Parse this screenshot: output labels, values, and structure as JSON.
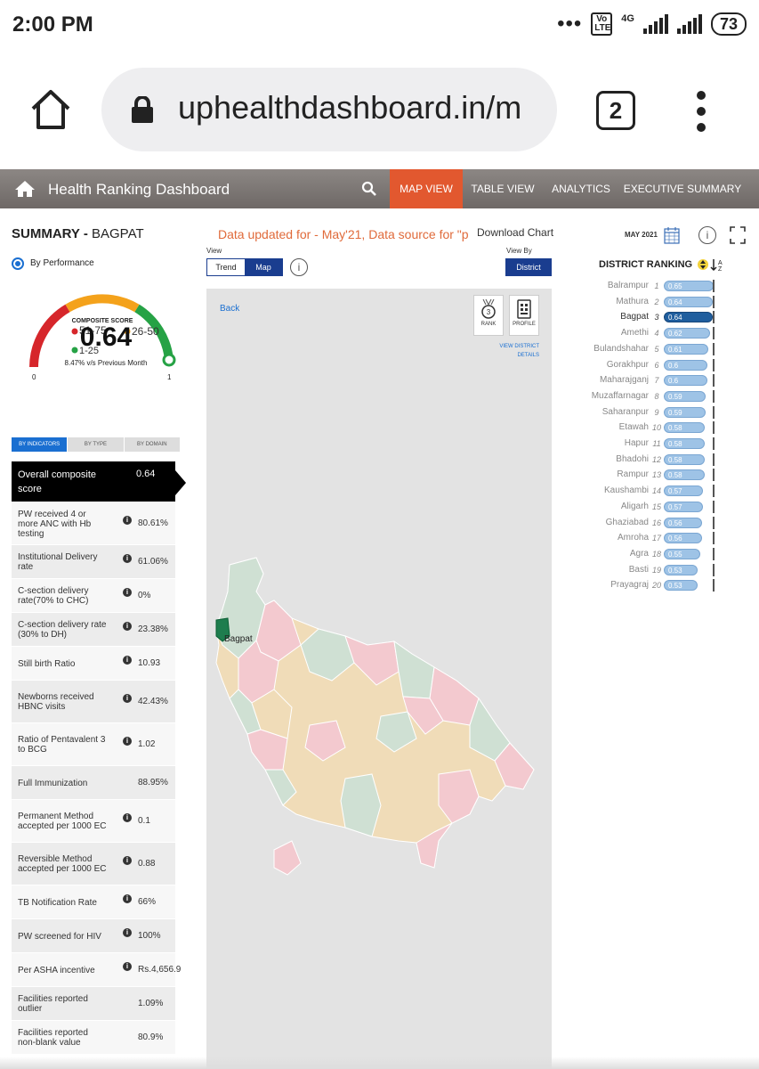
{
  "status_bar": {
    "time": "2:00 PM",
    "volte": "Vo LTE",
    "network": "4G",
    "battery": "73"
  },
  "browser": {
    "url": "uphealthdashboard.in/m",
    "tab_count": "2"
  },
  "nav": {
    "title": "Health Ranking Dashboard",
    "tabs": [
      {
        "label": "MAP VIEW",
        "active": true
      },
      {
        "label": "TABLE VIEW",
        "active": false
      },
      {
        "label": "ANALYTICS",
        "active": false
      },
      {
        "label": "EXECUTIVE SUMMARY",
        "active": false
      }
    ]
  },
  "summary": {
    "title_prefix": "SUMMARY - ",
    "district": "BAGPAT",
    "mode": "By Performance",
    "gauge": {
      "label": "COMPOSITE SCORE",
      "score": "0.64",
      "comparison": "8.47% v/s Previous Month",
      "legend": [
        "51-75",
        "26-50",
        "1-25"
      ],
      "min": "0",
      "max": "1",
      "value_fraction": 0.64,
      "colors": {
        "low": "#d6262b",
        "mid": "#f4a21b",
        "high": "#26a245"
      }
    },
    "tabs": [
      "BY INDICATORS",
      "BY TYPE",
      "BY DOMAIN"
    ],
    "indicators": [
      {
        "label": "Overall composite score",
        "value": "0.64",
        "info": false
      },
      {
        "label": "PW received 4 or more ANC with Hb testing",
        "value": "80.61%",
        "info": true
      },
      {
        "label": "Institutional Delivery rate",
        "value": "61.06%",
        "info": true
      },
      {
        "label": "C-section delivery rate(70% to CHC)",
        "value": "0%",
        "info": true
      },
      {
        "label": "C-section delivery rate (30% to DH)",
        "value": "23.38%",
        "info": true
      },
      {
        "label": "Still birth Ratio",
        "value": "10.93",
        "info": true
      },
      {
        "label": "Newborns received HBNC visits",
        "value": "42.43%",
        "info": true
      },
      {
        "label": "Ratio of Pentavalent 3 to BCG",
        "value": "1.02",
        "info": true
      },
      {
        "label": "Full Immunization",
        "value": "88.95%",
        "info": false
      },
      {
        "label": "Permanent Method accepted per 1000 EC",
        "value": "0.1",
        "info": true
      },
      {
        "label": "Reversible Method accepted per 1000 EC",
        "value": "0.88",
        "info": true
      },
      {
        "label": "TB Notification Rate",
        "value": "66%",
        "info": true
      },
      {
        "label": "PW screened for HIV",
        "value": "100%",
        "info": true
      },
      {
        "label": "Per ASHA incentive",
        "value": "Rs.4,656.9",
        "info": true
      },
      {
        "label": "Facilities reported outlier",
        "value": "1.09%",
        "info": false
      },
      {
        "label": "Facilities reported non-blank value",
        "value": "80.9%",
        "info": false
      }
    ]
  },
  "center": {
    "updated_text": "Data updated for - May'21, Data source for \"p",
    "download": "Download Chart",
    "view_label": "View",
    "view_by_label": "View By",
    "toggle": [
      "Trend",
      "Map"
    ],
    "district_btn": "District",
    "back": "Back",
    "rank_icon_label": "RANK",
    "rank_icon_num": "3",
    "profile_icon_label": "PROFILE",
    "view_district": "VIEW DISTRICT DETAILS",
    "map_label": "Bagpat"
  },
  "ranking": {
    "month": "MAY 2021",
    "title": "DISTRICT RANKING",
    "selected": "Bagpat",
    "rows": [
      {
        "name": "Balrampur",
        "rank": "1",
        "value": "0.65",
        "score": 0.65
      },
      {
        "name": "Mathura",
        "rank": "2",
        "value": "0.64",
        "score": 0.64
      },
      {
        "name": "Bagpat",
        "rank": "3",
        "value": "0.64",
        "score": 0.64
      },
      {
        "name": "Amethi",
        "rank": "4",
        "value": "0.62",
        "score": 0.62
      },
      {
        "name": "Bulandshahar",
        "rank": "5",
        "value": "0.61",
        "score": 0.61
      },
      {
        "name": "Gorakhpur",
        "rank": "6",
        "value": "0.6",
        "score": 0.6
      },
      {
        "name": "Maharajganj",
        "rank": "7",
        "value": "0.6",
        "score": 0.6
      },
      {
        "name": "Muzaffarnagar",
        "rank": "8",
        "value": "0.59",
        "score": 0.59
      },
      {
        "name": "Saharanpur",
        "rank": "9",
        "value": "0.59",
        "score": 0.59
      },
      {
        "name": "Etawah",
        "rank": "10",
        "value": "0.58",
        "score": 0.58
      },
      {
        "name": "Hapur",
        "rank": "11",
        "value": "0.58",
        "score": 0.58
      },
      {
        "name": "Bhadohi",
        "rank": "12",
        "value": "0.58",
        "score": 0.58
      },
      {
        "name": "Rampur",
        "rank": "13",
        "value": "0.58",
        "score": 0.58
      },
      {
        "name": "Kaushambi",
        "rank": "14",
        "value": "0.57",
        "score": 0.57
      },
      {
        "name": "Aligarh",
        "rank": "15",
        "value": "0.57",
        "score": 0.57
      },
      {
        "name": "Ghaziabad",
        "rank": "16",
        "value": "0.56",
        "score": 0.56
      },
      {
        "name": "Amroha",
        "rank": "17",
        "value": "0.56",
        "score": 0.56
      },
      {
        "name": "Agra",
        "rank": "18",
        "value": "0.55",
        "score": 0.55
      },
      {
        "name": "Basti",
        "rank": "19",
        "value": "0.53",
        "score": 0.53
      },
      {
        "name": "Prayagraj",
        "rank": "20",
        "value": "0.53",
        "score": 0.53
      }
    ]
  },
  "icons": {
    "home": "home-icon",
    "lock": "lock-icon",
    "search": "search-icon",
    "calendar": "calendar-icon",
    "fullscreen": "fullscreen-icon",
    "sort": "sort-icon",
    "info": "info-icon"
  }
}
